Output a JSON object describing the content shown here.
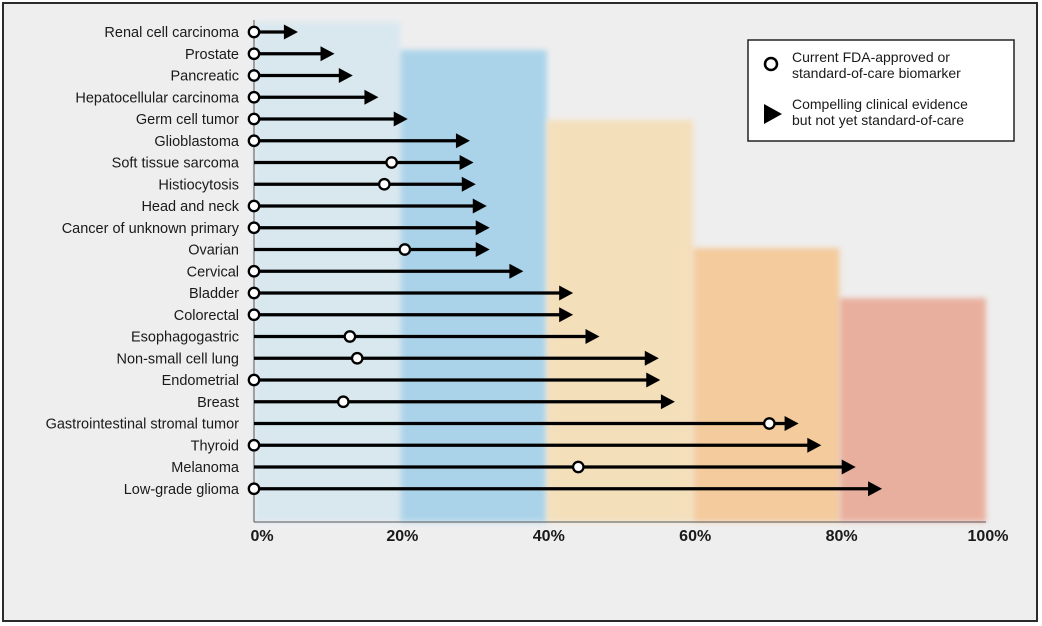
{
  "chart_data": {
    "type": "range-arrow",
    "xlim": [
      0,
      100
    ],
    "x_ticks": [
      "0%",
      "20%",
      "40%",
      "60%",
      "80%",
      "100%"
    ],
    "categories": [
      {
        "name": "Renal cell carcinoma",
        "start": 0,
        "end": 6
      },
      {
        "name": "Prostate",
        "start": 0,
        "end": 11
      },
      {
        "name": "Pancreatic",
        "start": 0,
        "end": 13.5
      },
      {
        "name": "Hepatocellular carcinoma",
        "start": 0,
        "end": 17
      },
      {
        "name": "Germ cell tumor",
        "start": 0,
        "end": 21
      },
      {
        "name": "Glioblastoma",
        "start": 0,
        "end": 29.5
      },
      {
        "name": "Soft tissue sarcoma",
        "start": 18.8,
        "end": 30
      },
      {
        "name": "Histiocytosis",
        "start": 17.8,
        "end": 30.3
      },
      {
        "name": "Head and neck",
        "start": 0,
        "end": 31.8
      },
      {
        "name": "Cancer of unknown primary",
        "start": 0,
        "end": 32.2
      },
      {
        "name": "Ovarian",
        "start": 20.6,
        "end": 32.2
      },
      {
        "name": "Cervical",
        "start": 0,
        "end": 36.8
      },
      {
        "name": "Bladder",
        "start": 0,
        "end": 43.6
      },
      {
        "name": "Colorectal",
        "start": 0,
        "end": 43.6
      },
      {
        "name": "Esophagogastric",
        "start": 13.1,
        "end": 47.2
      },
      {
        "name": "Non-small cell lung",
        "start": 14.1,
        "end": 55.3
      },
      {
        "name": "Endometrial",
        "start": 0,
        "end": 55.5
      },
      {
        "name": "Breast",
        "start": 12.2,
        "end": 57.5
      },
      {
        "name": "Gastrointestinal stromal tumor",
        "start": 70.4,
        "end": 74.4
      },
      {
        "name": "Thyroid",
        "start": 0,
        "end": 77.5
      },
      {
        "name": "Melanoma",
        "start": 44.3,
        "end": 82.2
      },
      {
        "name": "Low-grade glioma",
        "start": 0,
        "end": 85.8
      }
    ],
    "bands": [
      {
        "range": [
          0,
          20
        ],
        "color": "#d6e7f0"
      },
      {
        "range": [
          20,
          40
        ],
        "color": "#9fcfe8"
      },
      {
        "range": [
          40,
          60
        ],
        "color": "#f6ddb2"
      },
      {
        "range": [
          60,
          80
        ],
        "color": "#f5c58e"
      },
      {
        "range": [
          80,
          100
        ],
        "color": "#e8a590"
      }
    ],
    "legend": {
      "placement": "top-right",
      "entries": [
        {
          "marker": "circle",
          "lines": [
            "Current FDA-approved or",
            "standard-of-care biomarker"
          ]
        },
        {
          "marker": "triangle",
          "lines": [
            "Compelling clinical evidence",
            "but not yet standard-of-care"
          ]
        }
      ]
    },
    "grid": false
  }
}
